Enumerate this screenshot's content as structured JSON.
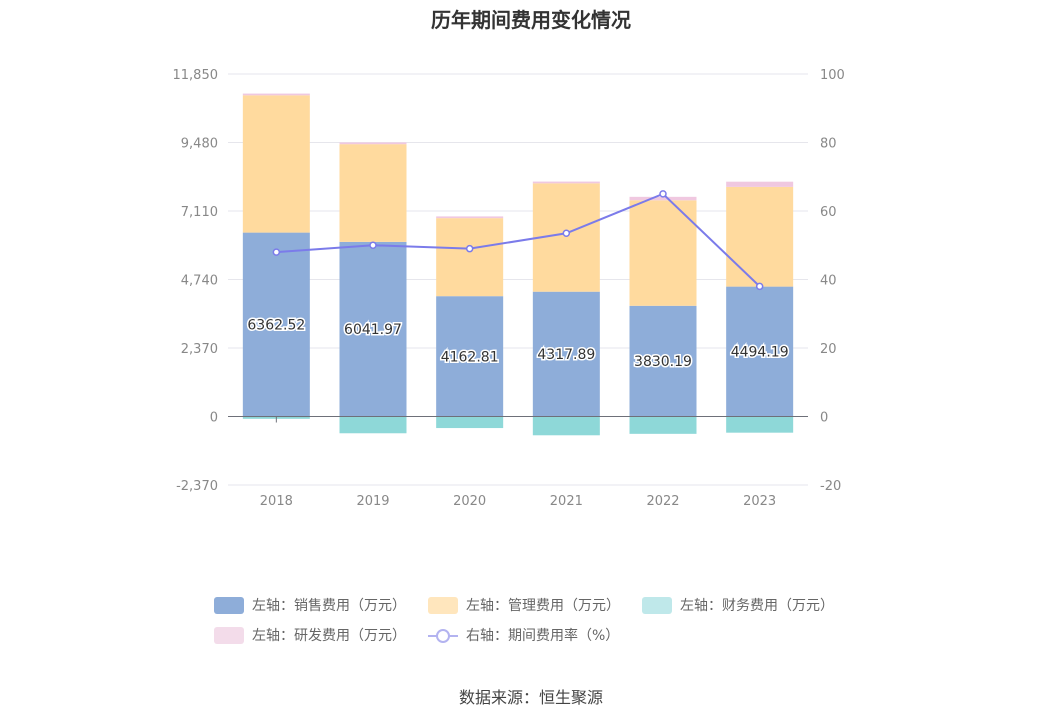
{
  "chart_data": {
    "type": "bar",
    "title": "历年期间费用变化情况",
    "categories": [
      "2018",
      "2019",
      "2020",
      "2021",
      "2022",
      "2023"
    ],
    "left_axis": {
      "ticks": [
        -2370,
        0,
        2370,
        4740,
        7110,
        9480,
        11850
      ],
      "tick_labels": [
        "-2,370",
        "0",
        "2,370",
        "4,740",
        "7,110",
        "9,480",
        "11,850"
      ],
      "range": [
        -2370,
        11850
      ]
    },
    "right_axis": {
      "ticks": [
        -20,
        0,
        20,
        40,
        60,
        80,
        100
      ],
      "tick_labels": [
        "-20",
        "0",
        "20",
        "40",
        "60",
        "80",
        "100"
      ],
      "range": [
        -20,
        100
      ]
    },
    "grid": true,
    "legend_position": "bottom",
    "series": [
      {
        "name": "左轴：销售费用（万元）",
        "axis": "left",
        "stack": "pos",
        "color": "#8eadd9",
        "values": [
          6362.52,
          6041.97,
          4162.81,
          4317.89,
          3830.19,
          4494.19
        ],
        "labels": [
          "6362.52",
          "6041.97",
          "4162.81",
          "4317.89",
          "3830.19",
          "4494.19"
        ]
      },
      {
        "name": "左轴：管理费用（万元）",
        "axis": "left",
        "stack": "pos",
        "color": "#ffda9e",
        "values": [
          4750,
          3380,
          2700,
          3750,
          3650,
          3450
        ]
      },
      {
        "name": "左轴：财务费用（万元）",
        "axis": "left",
        "stack": "neg",
        "color": "#8ed8d8",
        "values": [
          -80,
          -580,
          -400,
          -650,
          -600,
          -560
        ]
      },
      {
        "name": "左轴：研发费用（万元）",
        "axis": "left",
        "stack": "pos",
        "color": "#f0c8e0",
        "values": [
          60,
          60,
          60,
          60,
          120,
          180
        ]
      },
      {
        "name": "右轴：期间费用率（%）",
        "axis": "right",
        "type": "line",
        "color": "#7b7bea",
        "values": [
          48.0,
          50.0,
          49.0,
          53.5,
          65.0,
          38.0
        ]
      }
    ]
  },
  "source": "数据来源：恒生聚源"
}
